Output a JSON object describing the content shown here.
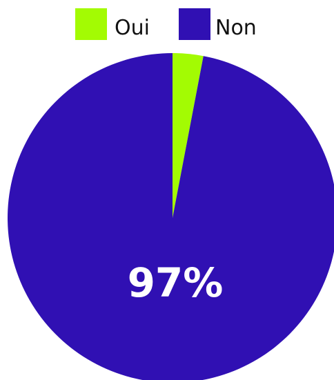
{
  "chart_data": {
    "type": "pie",
    "categories": [
      "Oui",
      "Non"
    ],
    "values": [
      3,
      97
    ],
    "colors": [
      "#a3fb03",
      "#3010b3"
    ],
    "data_labels": [
      "",
      "97%"
    ],
    "legend_position": "top",
    "start_angle_deg": 0,
    "direction": "clockwise"
  }
}
